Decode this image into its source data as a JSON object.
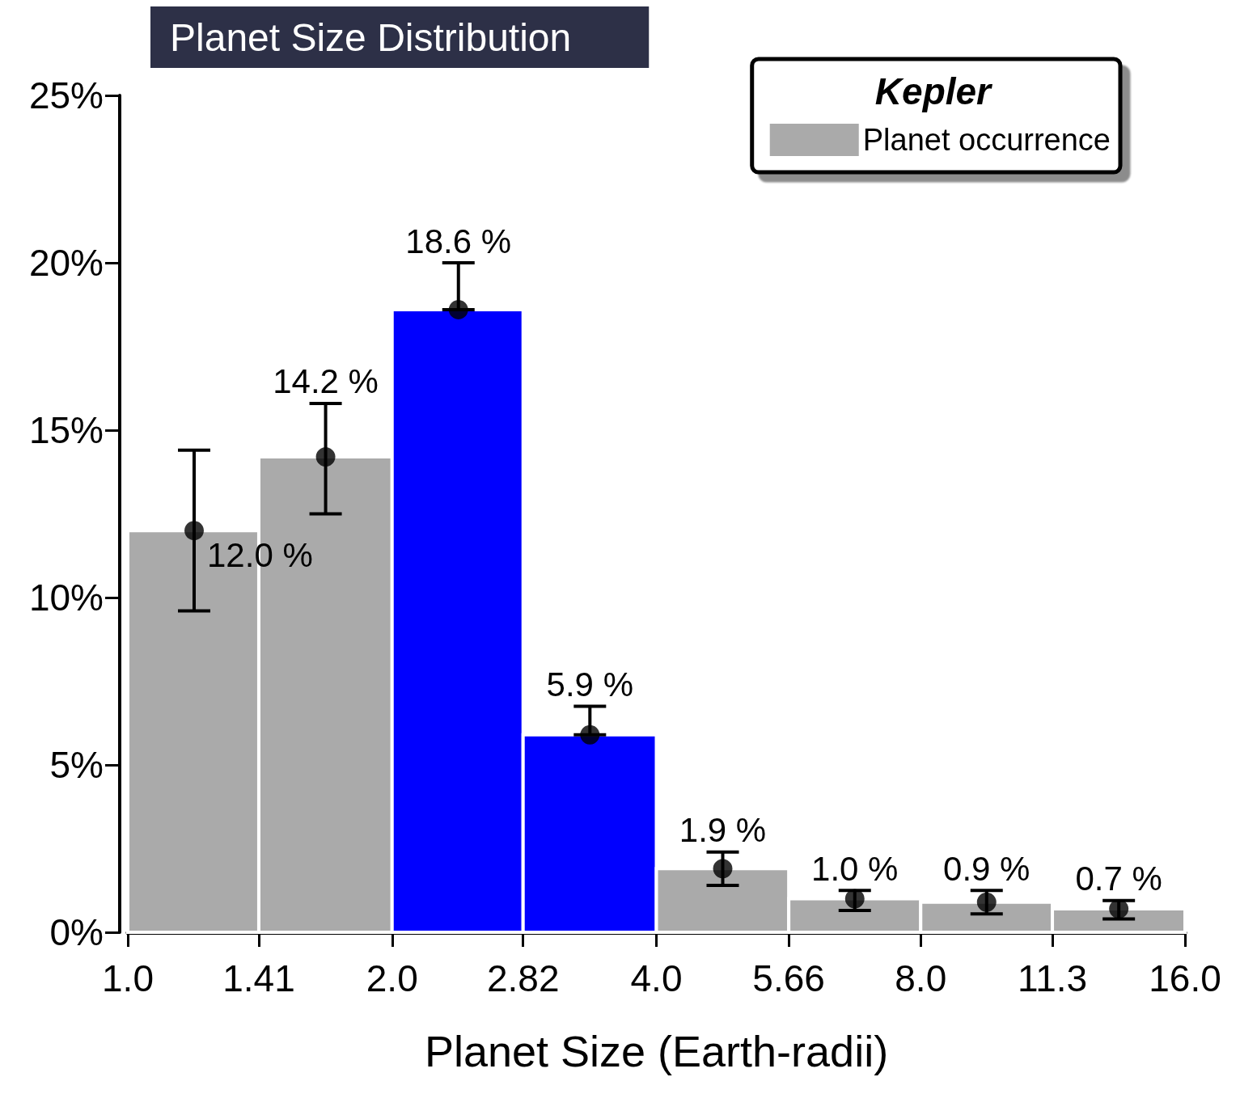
{
  "chart_data": {
    "type": "histogram",
    "title": "Planet Size Distribution",
    "xlabel": "Planet Size (Earth-radii)",
    "legend_title": "Kepler",
    "bins": [
      1.0,
      1.41,
      2.0,
      2.82,
      4.0,
      5.66,
      8.0,
      11.3,
      16.0
    ],
    "series": [
      {
        "name": "Planet occurrence",
        "color": "#aaaaaa",
        "values": [
          12.0,
          14.2,
          18.6,
          5.9,
          1.9,
          1.0,
          0.9,
          0.7
        ],
        "colors": [
          "#aaaaaa",
          "#aaaaaa",
          "#0000ff",
          "#0000ff",
          "#aaaaaa",
          "#aaaaaa",
          "#aaaaaa",
          "#aaaaaa"
        ]
      },
      {
        "type": "scatter",
        "color": "#000000",
        "x": [
          1.19,
          1.68,
          2.38,
          3.36,
          4.76,
          6.73,
          9.51,
          13.45
        ],
        "values": [
          12.0,
          14.2,
          18.6,
          5.9,
          1.9,
          1.0,
          0.9,
          0.7
        ],
        "errors": [
          [
            9.6,
            14.4
          ],
          [
            12.5,
            15.8
          ],
          [
            18.6,
            20.0
          ],
          [
            5.9,
            6.75
          ],
          [
            1.4,
            2.4
          ],
          [
            0.65,
            1.25
          ],
          [
            0.55,
            1.25
          ],
          [
            0.4,
            0.95
          ]
        ],
        "value_labels": [
          "12.0 %",
          "14.2 %",
          "18.6 %",
          "5.9 %",
          "1.9 %",
          "1.0 %",
          "0.9 %",
          "0.7 %"
        ]
      }
    ],
    "log": "x",
    "xlim": [
      1.0,
      16.0
    ],
    "xticks": [
      {
        "value": 1.0,
        "label": "1.0"
      },
      1.41,
      {
        "value": 2.0,
        "label": "2.0"
      },
      2.82,
      {
        "value": 4.0,
        "label": "4.0"
      },
      5.66,
      {
        "value": 8.0,
        "label": "8.0"
      },
      11.3,
      {
        "value": 16.0,
        "label": "16.0"
      }
    ],
    "ylim": [
      0,
      25
    ],
    "yticks": [
      {
        "value": 0,
        "label": "0%"
      },
      {
        "value": 5,
        "label": "5%"
      },
      {
        "value": 10,
        "label": "10%"
      },
      {
        "value": 15,
        "label": "15%"
      },
      {
        "value": 20,
        "label": "20%"
      },
      {
        "value": 25,
        "label": "25%"
      }
    ],
    "grid": false,
    "legend": "top right",
    "marker": "circle"
  }
}
